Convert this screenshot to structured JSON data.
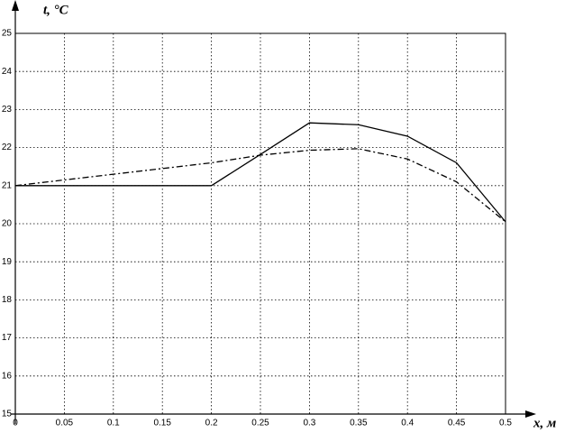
{
  "chart_data": {
    "type": "line",
    "ylabel": "t,  °C",
    "xlabel": "x, м",
    "x": [
      0,
      0.05,
      0.1,
      0.15,
      0.2,
      0.25,
      0.3,
      0.35,
      0.4,
      0.45,
      0.5
    ],
    "series": [
      {
        "color": "#000000",
        "dash": "solid",
        "values": [
          21,
          21,
          21,
          21,
          21,
          21.82,
          22.65,
          22.6,
          22.3,
          21.6,
          20.05
        ]
      },
      {
        "color": "#000000",
        "dash": "dashdot",
        "values": [
          21,
          21.15,
          21.3,
          21.45,
          21.6,
          21.8,
          21.93,
          21.97,
          21.7,
          21.1,
          20.05
        ]
      }
    ],
    "xlim": [
      0,
      0.5
    ],
    "xticks": [
      0,
      0.05,
      0.1,
      0.15,
      0.2,
      0.25,
      0.3,
      0.35,
      0.4,
      0.45,
      0.5
    ],
    "ylim": [
      15,
      25
    ],
    "yticks": [
      15,
      16,
      17,
      18,
      19,
      20,
      21,
      22,
      23,
      24,
      25
    ],
    "grid": true
  }
}
